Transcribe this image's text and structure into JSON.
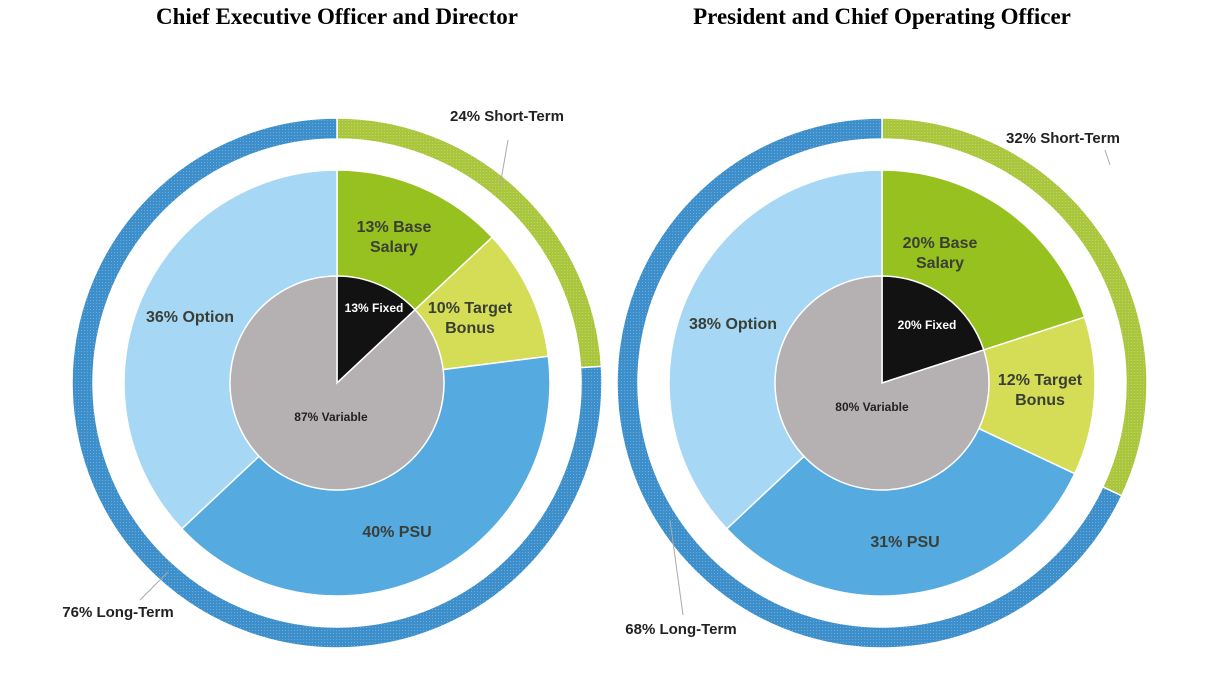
{
  "chart_data": [
    {
      "type": "pie",
      "title": "Chief Executive Officer and Director",
      "outer_ring": [
        {
          "label": "24% Short-Term",
          "value": 24,
          "color": "#a9c63c"
        },
        {
          "label": "76% Long-Term",
          "value": 76,
          "color": "#3d8fcc"
        }
      ],
      "middle_ring": [
        {
          "label": "13% Base Salary",
          "lines": [
            "13% Base",
            "Salary"
          ],
          "value": 13,
          "color": "#97c11f"
        },
        {
          "label": "10% Target Bonus",
          "lines": [
            "10% Target",
            "Bonus"
          ],
          "value": 10,
          "color": "#d5dc55"
        },
        {
          "label": "40% PSU",
          "lines": [
            "40% PSU"
          ],
          "value": 40,
          "color": "#55aae0"
        },
        {
          "label": "36% Option",
          "lines": [
            "36% Option"
          ],
          "value": 36,
          "color": "#a6d7f5"
        }
      ],
      "inner_pie": [
        {
          "label": "13% Fixed",
          "value": 13,
          "color": "#121212"
        },
        {
          "label": "87% Variable",
          "value": 87,
          "color": "#b5b1b2"
        }
      ]
    },
    {
      "type": "pie",
      "title": "President and Chief Operating Officer",
      "outer_ring": [
        {
          "label": "32% Short-Term",
          "value": 32,
          "color": "#a9c63c"
        },
        {
          "label": "68% Long-Term",
          "value": 68,
          "color": "#3d8fcc"
        }
      ],
      "middle_ring": [
        {
          "label": "20% Base Salary",
          "lines": [
            "20% Base",
            "Salary"
          ],
          "value": 20,
          "color": "#97c11f"
        },
        {
          "label": "12% Target Bonus",
          "lines": [
            "12% Target",
            "Bonus"
          ],
          "value": 12,
          "color": "#d5dc55"
        },
        {
          "label": "31% PSU",
          "lines": [
            "31% PSU"
          ],
          "value": 31,
          "color": "#55aae0"
        },
        {
          "label": "38% Option",
          "lines": [
            "38% Option"
          ],
          "value": 38,
          "color": "#a6d7f5"
        }
      ],
      "inner_pie": [
        {
          "label": "20% Fixed",
          "value": 20,
          "color": "#121212"
        },
        {
          "label": "80% Variable",
          "value": 80,
          "color": "#b5b1b2"
        }
      ]
    }
  ]
}
